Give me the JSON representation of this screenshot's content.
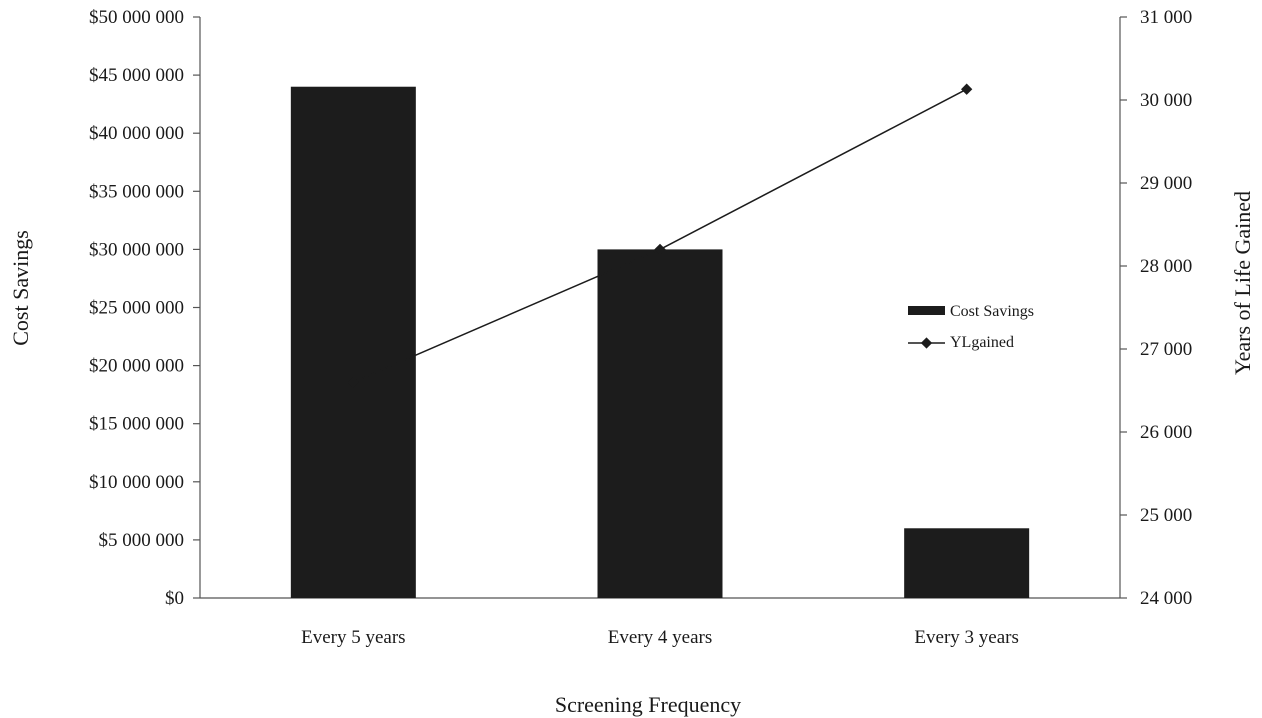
{
  "chart_data": {
    "type": "bar",
    "categories": [
      "Every 5 years",
      "Every 4 years",
      "Every 3 years"
    ],
    "series": [
      {
        "name": "Cost Savings",
        "type": "bar",
        "axis": "left",
        "values": [
          44000000,
          30000000,
          6000000
        ]
      },
      {
        "name": "YLgained",
        "type": "line",
        "axis": "right",
        "values": [
          26600,
          28200,
          30130
        ]
      }
    ],
    "xlabel": "Screening Frequency",
    "ylabel": "Cost Savings",
    "y2label": "Years of Life Gained",
    "ylim": [
      0,
      50000000
    ],
    "y2lim": [
      24000,
      31000
    ],
    "yticks": [
      "$0",
      "$5 000 000",
      "$10 000 000",
      "$15 000 000",
      "$20 000 000",
      "$25 000 000",
      "$30 000 000",
      "$35 000 000",
      "$40 000 000",
      "$45 000 000",
      "$50 000 000"
    ],
    "y2ticks": [
      "24 000",
      "25 000",
      "26 000",
      "27 000",
      "28 000",
      "29 000",
      "30 000",
      "31 000"
    ],
    "legend": {
      "position": "right",
      "entries": [
        "Cost Savings",
        "YLgained"
      ]
    },
    "grid": false,
    "colors": {
      "bar": "#1c1c1c",
      "line": "#1c1c1c",
      "axis": "#555555"
    }
  }
}
